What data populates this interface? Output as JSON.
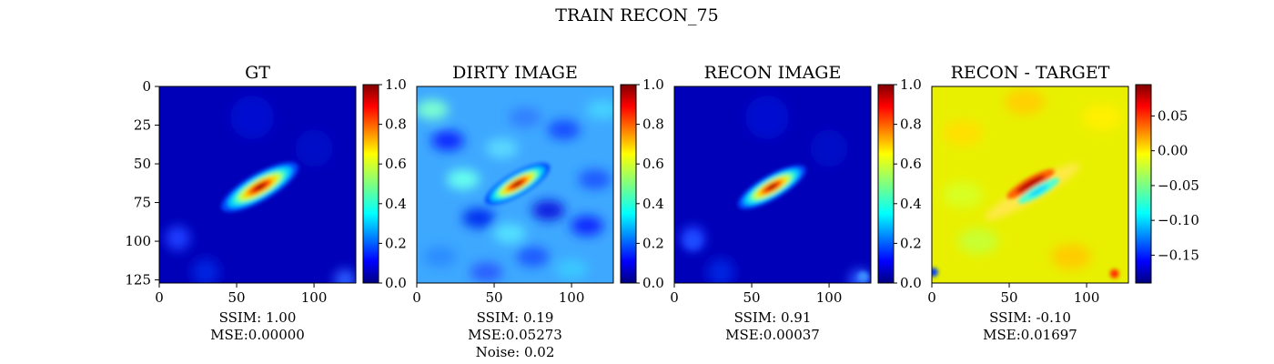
{
  "suptitle": "TRAIN RECON_75",
  "colors": {
    "jet": [
      "#000080",
      "#0000ff",
      "#00ffff",
      "#ffff00",
      "#ff0000",
      "#800000"
    ]
  },
  "chart_data": [
    {
      "type": "heatmap",
      "title": "GT",
      "xlim": [
        0,
        127
      ],
      "ylim": [
        127,
        0
      ],
      "xticks": [
        "0",
        "50",
        "100"
      ],
      "yticks": [
        "0",
        "25",
        "50",
        "75",
        "100",
        "125"
      ],
      "colorbar": {
        "range": [
          0.0,
          1.0
        ],
        "ticks": [
          "0.0",
          "0.2",
          "0.4",
          "0.6",
          "0.8",
          "1.0"
        ]
      },
      "source": {
        "center": [
          65,
          65
        ],
        "angle_deg": 30,
        "peak": 1.0,
        "background": 0.06
      },
      "stats": [
        "SSIM: 1.00",
        "MSE:0.00000"
      ]
    },
    {
      "type": "heatmap",
      "title": "DIRTY IMAGE",
      "xlim": [
        0,
        127
      ],
      "ylim": [
        127,
        0
      ],
      "xticks": [
        "0",
        "50",
        "100"
      ],
      "yticks": [],
      "colorbar": {
        "range": [
          0.0,
          1.0
        ],
        "ticks": [
          "0.0",
          "0.2",
          "0.4",
          "0.6",
          "0.8",
          "1.0"
        ]
      },
      "source": {
        "center": [
          65,
          63
        ],
        "angle_deg": 30,
        "peak": 1.0,
        "background": 0.3
      },
      "stats": [
        "SSIM: 0.19",
        "MSE:0.05273",
        "Noise: 0.02"
      ]
    },
    {
      "type": "heatmap",
      "title": "RECON IMAGE",
      "xlim": [
        0,
        127
      ],
      "ylim": [
        127,
        0
      ],
      "xticks": [
        "0",
        "50",
        "100"
      ],
      "yticks": [],
      "colorbar": {
        "range": [
          0.0,
          1.0
        ],
        "ticks": [
          "0.0",
          "0.2",
          "0.4",
          "0.6",
          "0.8",
          "1.0"
        ]
      },
      "source": {
        "center": [
          63,
          65
        ],
        "angle_deg": 30,
        "peak": 0.95,
        "background": 0.05
      },
      "stats": [
        "SSIM: 0.91",
        "MSE:0.00037"
      ]
    },
    {
      "type": "heatmap",
      "title": "RECON - TARGET",
      "xlim": [
        0,
        127
      ],
      "ylim": [
        127,
        0
      ],
      "xticks": [
        "0",
        "50",
        "100"
      ],
      "yticks": [],
      "colorbar": {
        "range": [
          -0.19,
          0.095
        ],
        "ticks": [
          "0.05",
          "0.00",
          "−0.05",
          "−0.10",
          "−0.15"
        ],
        "tick_values": [
          0.05,
          0.0,
          -0.05,
          -0.1,
          -0.15
        ]
      },
      "source": {
        "center": [
          65,
          65
        ],
        "angle_deg": 30,
        "peak": 0.09,
        "background": 0.0
      },
      "stats": [
        "SSIM: -0.10",
        "MSE:0.01697"
      ]
    }
  ]
}
